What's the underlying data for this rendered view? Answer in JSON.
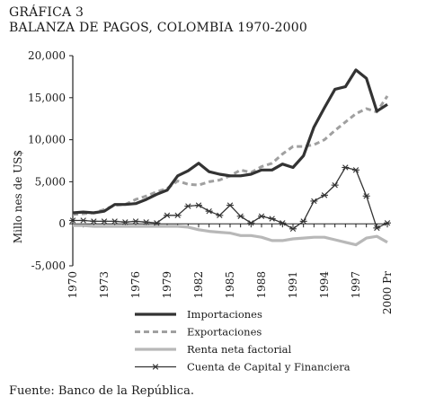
{
  "heading": {
    "label": "GRÁFICA 3",
    "title": "BALANZA DE PAGOS, COLOMBIA 1970-2000"
  },
  "source": "Fuente: Banco de la República.",
  "chart_data": {
    "type": "line",
    "title": "BALANZA DE PAGOS, COLOMBIA 1970-2000",
    "xlabel": "",
    "ylabel": "Millo nes de US$",
    "ylim": [
      -5000,
      20000
    ],
    "yticks": [
      -5000,
      0,
      5000,
      10000,
      15000,
      20000
    ],
    "ytick_labels": [
      "-5,000",
      "0",
      "5,000",
      "10,000",
      "15,000",
      "20,000"
    ],
    "xticks": [
      1970,
      1973,
      1976,
      1979,
      1982,
      1985,
      1988,
      1991,
      1994,
      1997,
      2000
    ],
    "xtick_labels": [
      "1970",
      "1973",
      "1976",
      "1979",
      "1982",
      "1985",
      "1988",
      "1991",
      "1994",
      "1997",
      "2000 Pr"
    ],
    "x": [
      1970,
      1971,
      1972,
      1973,
      1974,
      1975,
      1976,
      1977,
      1978,
      1979,
      1980,
      1981,
      1982,
      1983,
      1984,
      1985,
      1986,
      1987,
      1988,
      1989,
      1990,
      1991,
      1992,
      1993,
      1994,
      1995,
      1996,
      1997,
      1998,
      1999,
      2000
    ],
    "grid": false,
    "legend_position": "bottom",
    "series": [
      {
        "name": "Importaciones",
        "color": "#333333",
        "style": "solid-thick",
        "values": [
          1300,
          1400,
          1300,
          1500,
          2300,
          2300,
          2400,
          2900,
          3500,
          4000,
          5700,
          6300,
          7200,
          6200,
          5900,
          5700,
          5700,
          5900,
          6400,
          6400,
          7100,
          6700,
          8100,
          11500,
          13800,
          16000,
          16300,
          18300,
          17300,
          13400,
          14200
        ]
      },
      {
        "name": "Exportaciones",
        "color": "#a0a0a0",
        "style": "dashed",
        "values": [
          1100,
          1200,
          1300,
          1700,
          2200,
          2300,
          2900,
          3300,
          3800,
          4200,
          5100,
          4700,
          4600,
          5000,
          5200,
          5700,
          6400,
          6100,
          6800,
          7200,
          8300,
          9200,
          9200,
          9400,
          10000,
          11100,
          12100,
          13100,
          13700,
          13300,
          15200
        ]
      },
      {
        "name": "Renta neta factorial",
        "color": "#b8b8b8",
        "style": "solid-light",
        "values": [
          -200,
          -200,
          -300,
          -300,
          -300,
          -300,
          -300,
          -300,
          -300,
          -300,
          -300,
          -400,
          -700,
          -900,
          -1000,
          -1100,
          -1400,
          -1400,
          -1600,
          -2000,
          -2000,
          -1800,
          -1700,
          -1600,
          -1600,
          -1900,
          -2200,
          -2500,
          -1700,
          -1500,
          -2200
        ]
      },
      {
        "name": "Cuenta de Capital y Financiera",
        "color": "#333333",
        "style": "solid-star",
        "values": [
          400,
          400,
          300,
          300,
          300,
          200,
          300,
          200,
          100,
          1000,
          1000,
          2100,
          2200,
          1500,
          1000,
          2200,
          900,
          100,
          900,
          600,
          100,
          -600,
          300,
          2700,
          3400,
          4600,
          6700,
          6400,
          3300,
          -500,
          100
        ]
      }
    ]
  }
}
